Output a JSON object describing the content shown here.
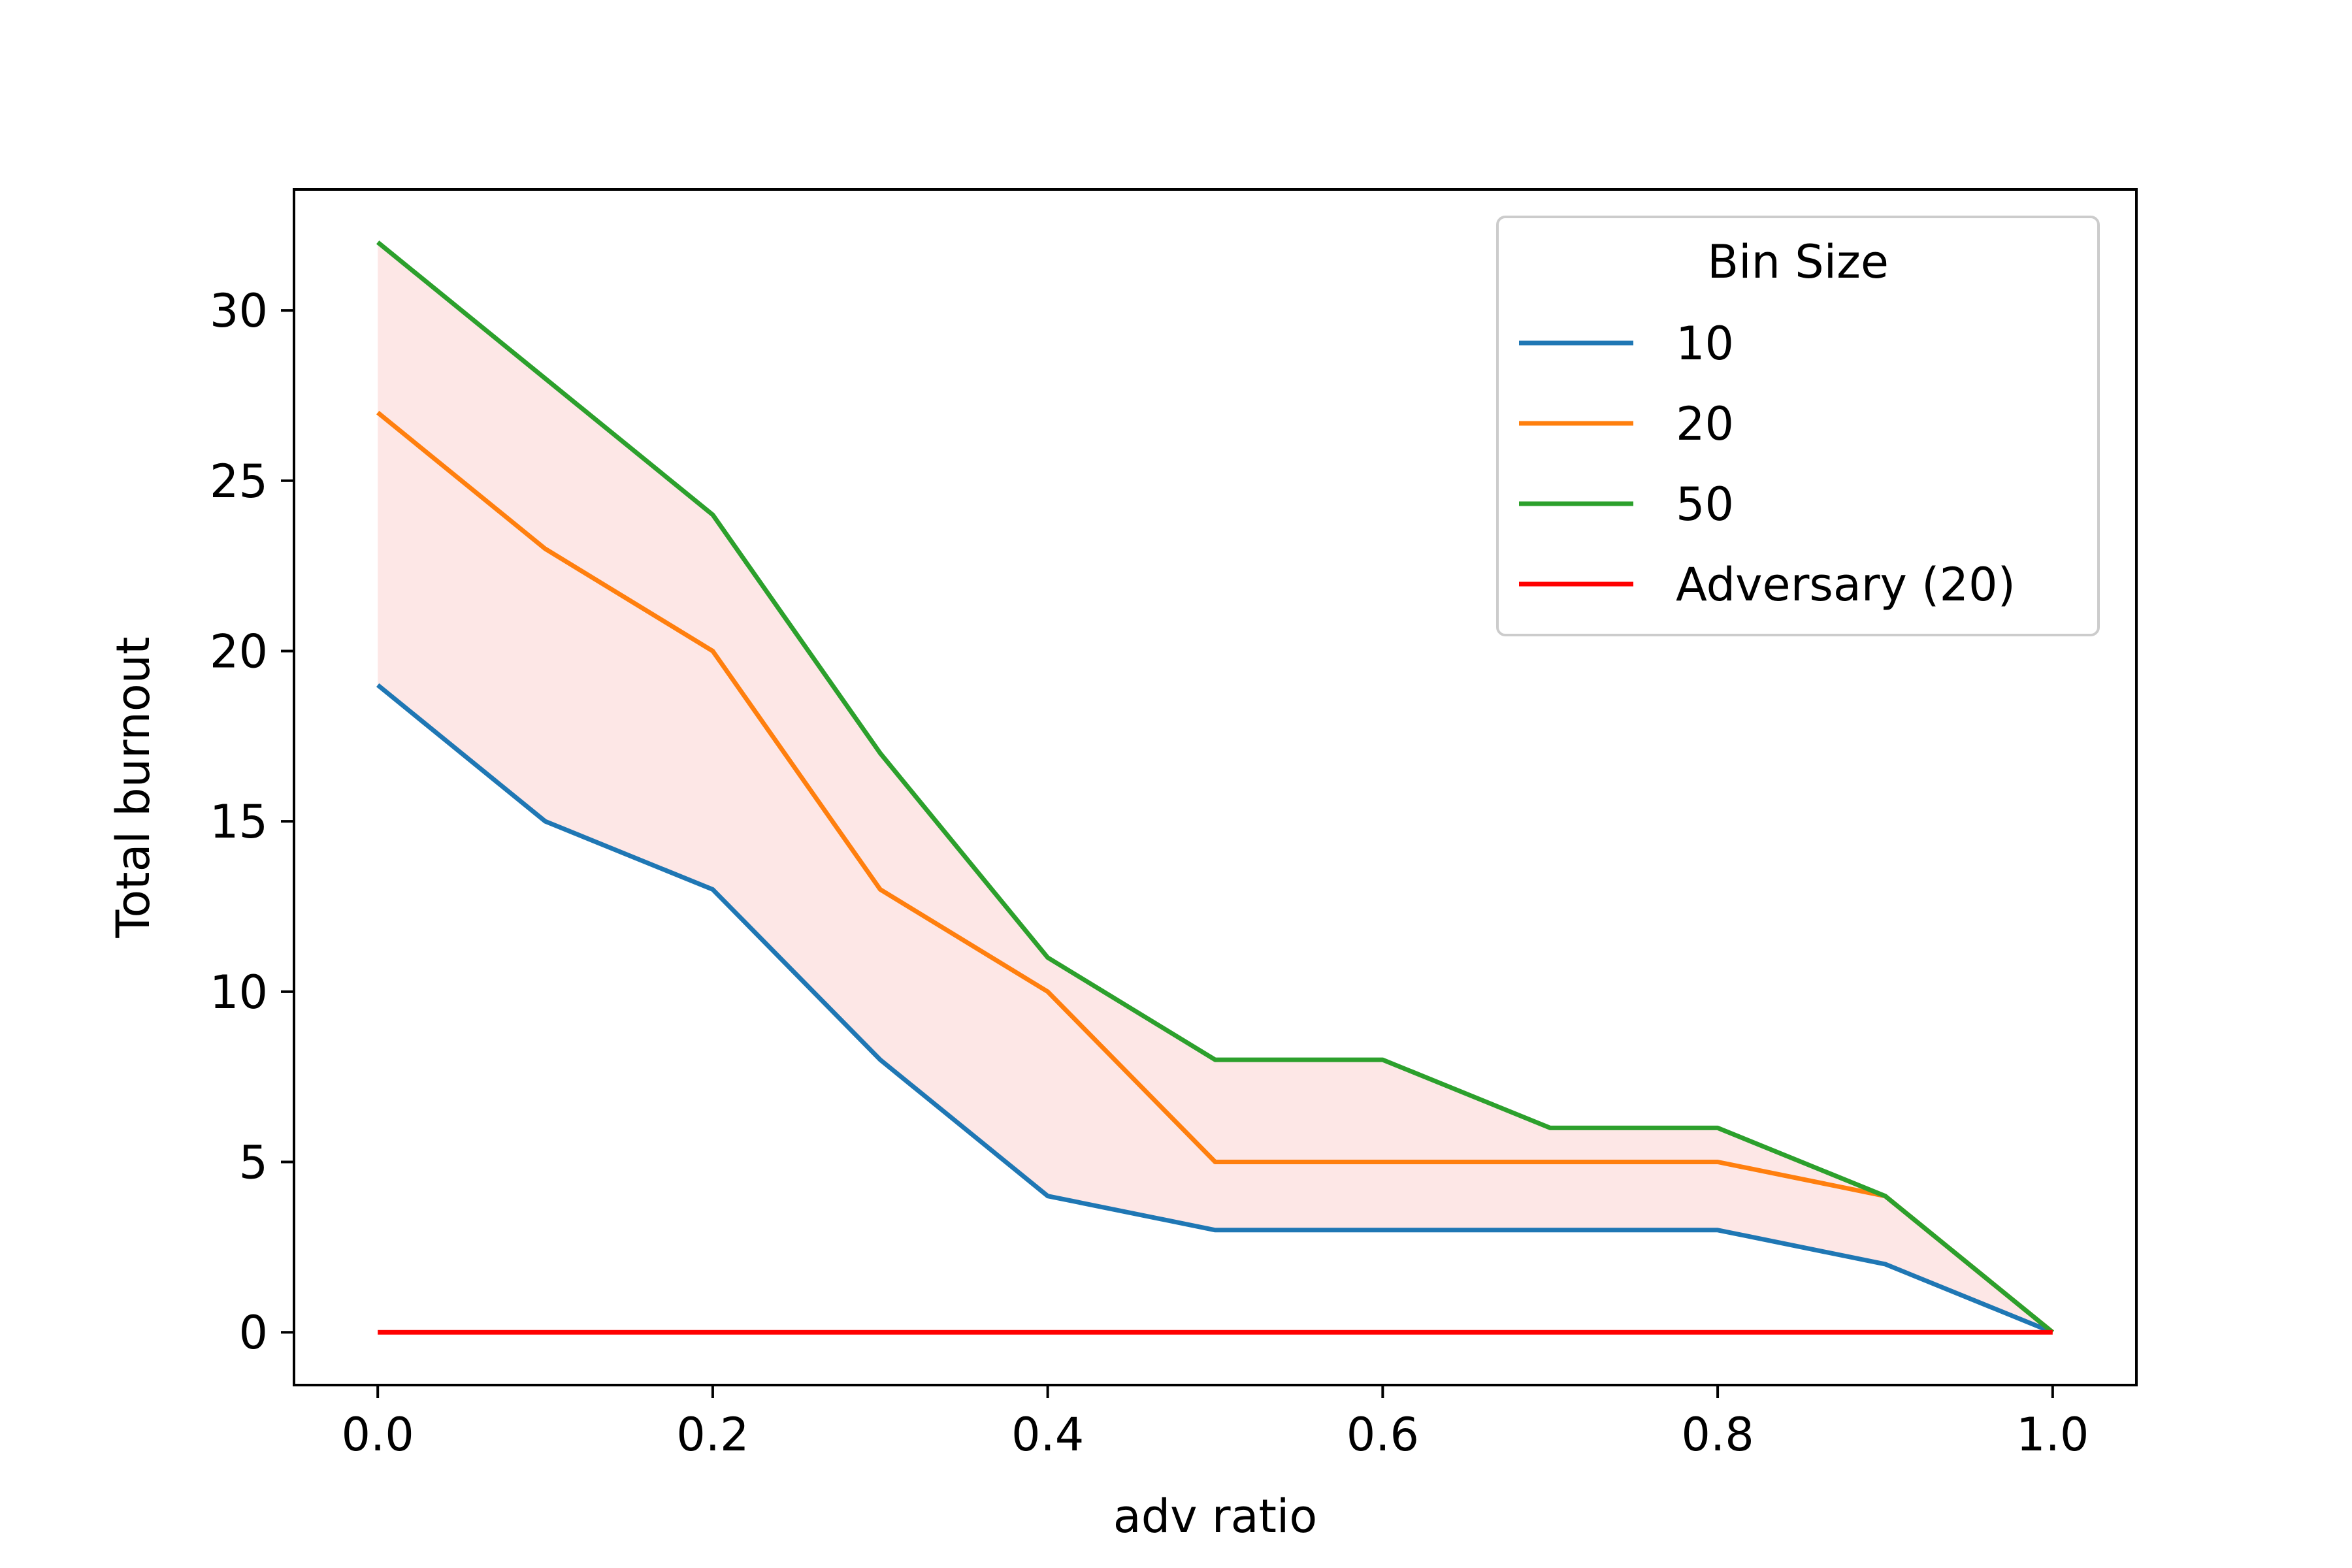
{
  "chart_data": {
    "type": "line",
    "xlabel": "adv ratio",
    "ylabel": "Total burnout",
    "xlim": [
      -0.05,
      1.05
    ],
    "ylim": [
      -1.55,
      33.55
    ],
    "x": [
      0.0,
      0.1,
      0.2,
      0.3,
      0.4,
      0.5,
      0.6,
      0.7,
      0.8,
      0.9,
      1.0
    ],
    "x_ticks": [
      0.0,
      0.2,
      0.4,
      0.6,
      0.8,
      1.0
    ],
    "x_tick_labels": [
      "0.0",
      "0.2",
      "0.4",
      "0.6",
      "0.8",
      "1.0"
    ],
    "y_ticks": [
      0,
      5,
      10,
      15,
      20,
      25,
      30
    ],
    "y_tick_labels": [
      "0",
      "5",
      "10",
      "15",
      "20",
      "25",
      "30"
    ],
    "grid": false,
    "legend": {
      "title": "Bin Size",
      "placement": "upper-right"
    },
    "series": [
      {
        "name": "10",
        "color": "#1f77b4",
        "values": [
          19,
          15,
          13,
          8,
          4,
          3,
          3,
          3,
          3,
          2,
          0
        ]
      },
      {
        "name": "20",
        "color": "#ff7f0e",
        "values": [
          27,
          23,
          20,
          13,
          10,
          5,
          5,
          5,
          5,
          4,
          0
        ]
      },
      {
        "name": "50",
        "color": "#2ca02c",
        "values": [
          32,
          28,
          24,
          17,
          11,
          8,
          8,
          6,
          6,
          4,
          0
        ]
      },
      {
        "name": "Adversary (20)",
        "color": "#ff0000",
        "values": [
          0,
          0,
          0,
          0,
          0,
          0,
          0,
          0,
          0,
          0,
          0
        ]
      }
    ],
    "band": {
      "lower_series": "10",
      "upper_series": "50",
      "color": "#fde7e6"
    }
  }
}
